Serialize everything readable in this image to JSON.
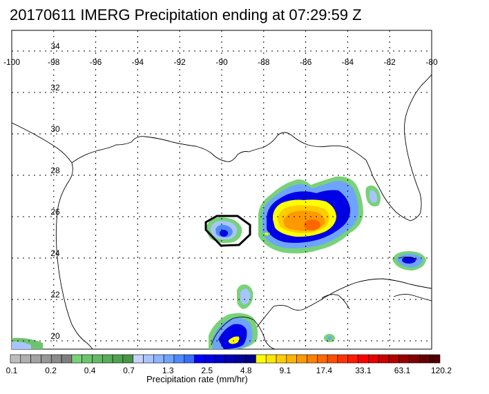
{
  "title": "20170611 IMERG Precipitation ending at 07:29:59 Z",
  "map": {
    "lon_range": [
      -100,
      -80
    ],
    "lat_range": [
      19.6,
      35.0
    ],
    "lon_ticks": [
      "-100",
      "-98",
      "-96",
      "-94",
      "-92",
      "-90",
      "-88",
      "-86",
      "-84",
      "-82",
      "-80"
    ],
    "lat_ticks": [
      "20",
      "22",
      "24",
      "26",
      "28",
      "30",
      "32",
      "34"
    ],
    "grid": "dotted",
    "region": "Gulf of Mexico",
    "highlight_outline_color": "#000000"
  },
  "colorbar": {
    "label": "Precipitation rate (mm/hr)",
    "tick_labels": [
      "0.1",
      "0.2",
      "0.4",
      "0.7",
      "1.3",
      "2.5",
      "4.8",
      "9.1",
      "17.4",
      "33.1",
      "63.1",
      "120.2"
    ],
    "colors": [
      "#bdbdbd",
      "#afafaf",
      "#a3a3a3",
      "#979797",
      "#8b8b8b",
      "#7f7f7f",
      "#78d278",
      "#6ec46e",
      "#64b964",
      "#5aad5a",
      "#50a250",
      "#469646",
      "#c6d2ff",
      "#a8c4ff",
      "#8cb4ff",
      "#6ea4ff",
      "#5088ff",
      "#3a6cff",
      "#0000ff",
      "#0000e6",
      "#0000cd",
      "#0000b4",
      "#00009b",
      "#000082",
      "#ffff00",
      "#ffe600",
      "#ffcc00",
      "#ffb300",
      "#ff9900",
      "#ff8000",
      "#ff6600",
      "#ff4d00",
      "#ff3300",
      "#ff1a00",
      "#ff0000",
      "#e60000",
      "#cc0000",
      "#b30000",
      "#990000",
      "#800000",
      "#660000",
      "#4d0000"
    ]
  }
}
